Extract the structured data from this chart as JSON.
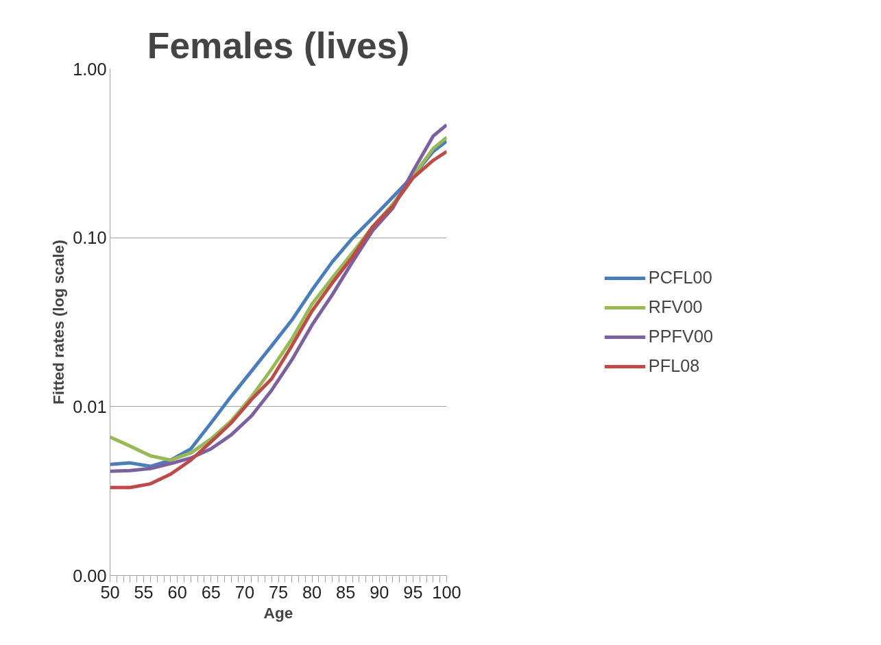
{
  "chart_data": {
    "type": "line",
    "title": "Females (lives)",
    "xlabel": "Age",
    "ylabel": "Fitted rates (log scale)",
    "x": [
      50,
      53,
      56,
      59,
      62,
      65,
      68,
      71,
      74,
      77,
      80,
      83,
      86,
      89,
      92,
      95,
      98,
      100
    ],
    "series": [
      {
        "name": "PCFL00",
        "color": "#4a7ebb",
        "values": [
          0.00455,
          0.00464,
          0.00443,
          0.00482,
          0.00562,
          0.008,
          0.0115,
          0.0162,
          0.0229,
          0.0325,
          0.049,
          0.0718,
          0.0993,
          0.131,
          0.174,
          0.232,
          0.324,
          0.374
        ]
      },
      {
        "name": "RFV00",
        "color": "#98b954",
        "values": [
          0.00661,
          0.00583,
          0.00511,
          0.00482,
          0.00531,
          0.00643,
          0.00823,
          0.0114,
          0.0167,
          0.0251,
          0.0405,
          0.0577,
          0.0813,
          0.116,
          0.158,
          0.232,
          0.337,
          0.393
        ]
      },
      {
        "name": "PPFV00",
        "color": "#7d60a0",
        "values": [
          0.00414,
          0.00418,
          0.0043,
          0.0046,
          0.00496,
          0.00562,
          0.0068,
          0.0088,
          0.0125,
          0.0189,
          0.0304,
          0.0459,
          0.0718,
          0.11,
          0.15,
          0.248,
          0.4,
          0.466
        ]
      },
      {
        "name": "PFL08",
        "color": "#be4b48",
        "values": [
          0.00332,
          0.00332,
          0.00349,
          0.00398,
          0.00482,
          0.00618,
          0.008,
          0.011,
          0.0146,
          0.0229,
          0.0368,
          0.0539,
          0.0768,
          0.116,
          0.154,
          0.226,
          0.287,
          0.324
        ]
      }
    ],
    "log": true,
    "xlim": [
      50,
      100
    ],
    "ylim": [
      0.001,
      1
    ],
    "xticks": [
      50,
      {
        "value": 51,
        "label": null
      },
      {
        "value": 52,
        "label": null
      },
      {
        "value": 53,
        "label": null
      },
      {
        "value": 54,
        "label": null
      },
      55,
      {
        "value": 56,
        "label": null
      },
      {
        "value": 57,
        "label": null
      },
      {
        "value": 58,
        "label": null
      },
      {
        "value": 59,
        "label": null
      },
      60,
      {
        "value": 61,
        "label": null
      },
      {
        "value": 62,
        "label": null
      },
      {
        "value": 63,
        "label": null
      },
      {
        "value": 64,
        "label": null
      },
      65,
      {
        "value": 66,
        "label": null
      },
      {
        "value": 67,
        "label": null
      },
      {
        "value": 68,
        "label": null
      },
      {
        "value": 69,
        "label": null
      },
      70,
      {
        "value": 71,
        "label": null
      },
      {
        "value": 72,
        "label": null
      },
      {
        "value": 73,
        "label": null
      },
      {
        "value": 74,
        "label": null
      },
      75,
      {
        "value": 76,
        "label": null
      },
      {
        "value": 77,
        "label": null
      },
      {
        "value": 78,
        "label": null
      },
      {
        "value": 79,
        "label": null
      },
      80,
      {
        "value": 81,
        "label": null
      },
      {
        "value": 82,
        "label": null
      },
      {
        "value": 83,
        "label": null
      },
      {
        "value": 84,
        "label": null
      },
      85,
      {
        "value": 86,
        "label": null
      },
      {
        "value": 87,
        "label": null
      },
      {
        "value": 88,
        "label": null
      },
      {
        "value": 89,
        "label": null
      },
      90,
      {
        "value": 91,
        "label": null
      },
      {
        "value": 92,
        "label": null
      },
      {
        "value": 93,
        "label": null
      },
      {
        "value": 94,
        "label": null
      },
      95,
      {
        "value": 96,
        "label": null
      },
      {
        "value": 97,
        "label": null
      },
      {
        "value": 98,
        "label": null
      },
      {
        "value": 99,
        "label": null
      },
      100
    ],
    "yticks": [
      {
        "value": 0.001,
        "label": "0.00"
      },
      {
        "value": 0.01,
        "label": "0.01"
      },
      {
        "value": 0.1,
        "label": "0.10"
      },
      {
        "value": 1,
        "label": "1.00"
      }
    ],
    "grid": "y",
    "legend": "right",
    "marker": "none",
    "line_style": "solid"
  }
}
